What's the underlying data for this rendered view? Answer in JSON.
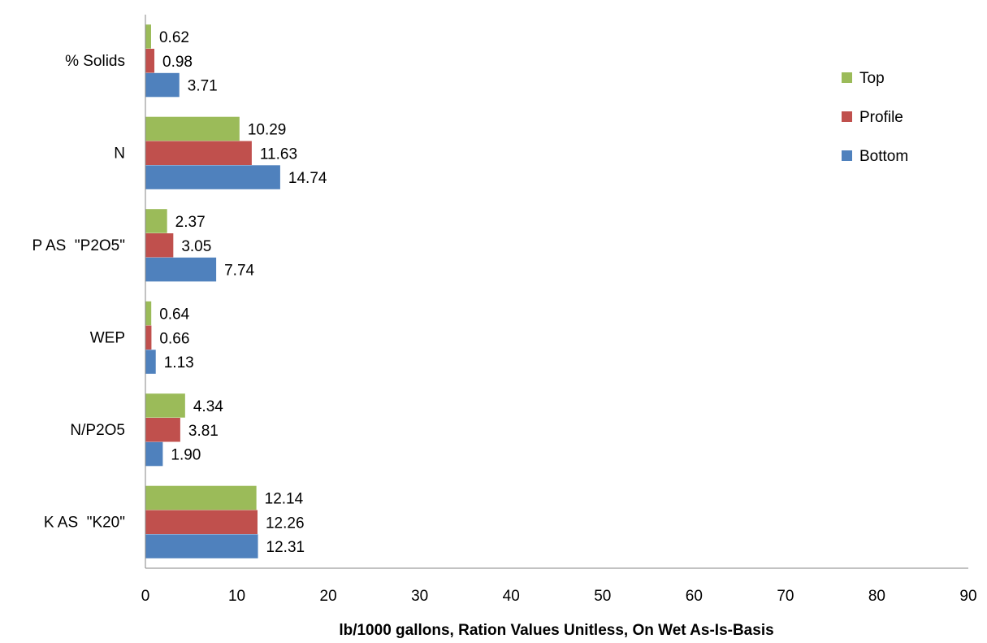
{
  "chart_data": {
    "type": "bar",
    "orientation": "horizontal",
    "categories": [
      "% Solids",
      "N",
      "P AS  \"P2O5\"",
      "WEP",
      "N/P2O5",
      "K AS  \"K20\""
    ],
    "series": [
      {
        "name": "Top",
        "color": "#9BBB59",
        "values": [
          0.62,
          10.29,
          2.37,
          0.64,
          4.34,
          12.14
        ],
        "labels": [
          "0.62",
          "10.29",
          "2.37",
          "0.64",
          "4.34",
          "12.14"
        ]
      },
      {
        "name": "Profile",
        "color": "#C0504D",
        "values": [
          0.98,
          11.63,
          3.05,
          0.66,
          3.81,
          12.26
        ],
        "labels": [
          "0.98",
          "11.63",
          "3.05",
          "0.66",
          "3.81",
          "12.26"
        ]
      },
      {
        "name": "Bottom",
        "color": "#4F81BD",
        "values": [
          3.71,
          14.74,
          7.74,
          1.13,
          1.9,
          12.31
        ],
        "labels": [
          "3.71",
          "14.74",
          "7.74",
          "1.13",
          "1.90",
          "12.31"
        ]
      }
    ],
    "xlabel": "lb/1000 gallons, Ration Values Unitless, On Wet As-Is-Basis",
    "xlim": [
      0,
      90
    ],
    "xticks": [
      "0",
      "10",
      "20",
      "30",
      "40",
      "50",
      "60",
      "70",
      "80",
      "90"
    ],
    "grid": false,
    "legend_position": "right"
  }
}
